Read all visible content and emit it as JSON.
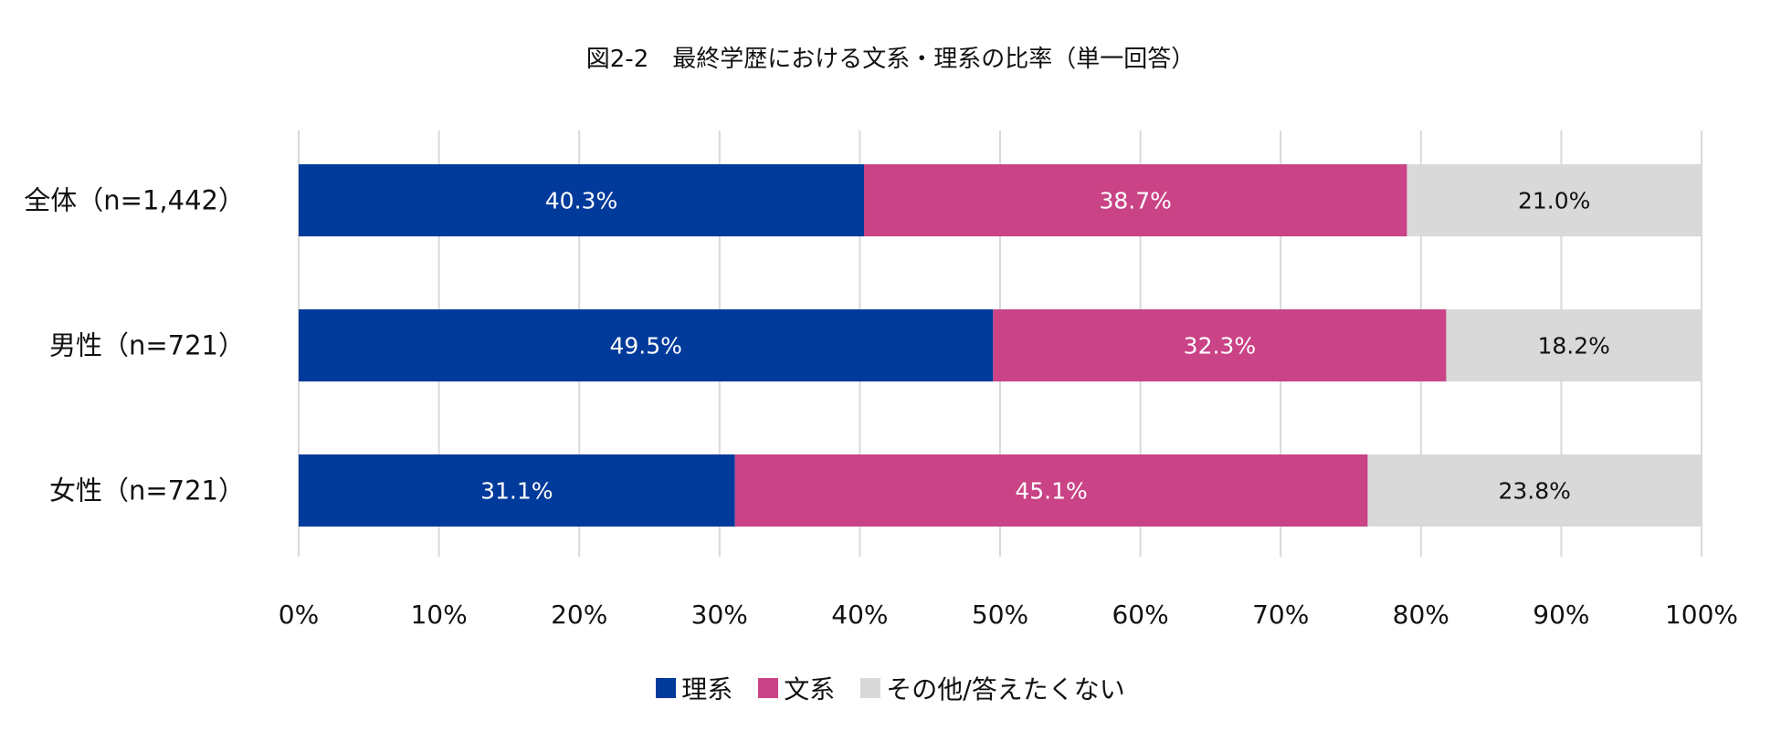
{
  "chart_data": {
    "type": "bar",
    "orientation": "horizontal",
    "stacked": true,
    "title": "図2-2　最終学歴における文系・理系の比率（単一回答）",
    "categories": [
      "全体（n=1,442）",
      "男性（n=721）",
      "女性（n=721）"
    ],
    "series": [
      {
        "name": "理系",
        "color": "#003A9B",
        "values": [
          40.3,
          49.5,
          31.1
        ],
        "label_color": "#ffffff"
      },
      {
        "name": "文系",
        "color": "#C94386",
        "values": [
          38.7,
          32.3,
          45.1
        ],
        "label_color": "#ffffff"
      },
      {
        "name": "その他/答えたくない",
        "color": "#D9D9D9",
        "values": [
          21.0,
          18.2,
          23.8
        ],
        "label_color": "#111111"
      }
    ],
    "xlim": [
      0,
      100
    ],
    "xticks": [
      "0%",
      "10%",
      "20%",
      "30%",
      "40%",
      "50%",
      "60%",
      "70%",
      "80%",
      "90%",
      "100%"
    ],
    "grid": true,
    "legend_position": "bottom"
  }
}
